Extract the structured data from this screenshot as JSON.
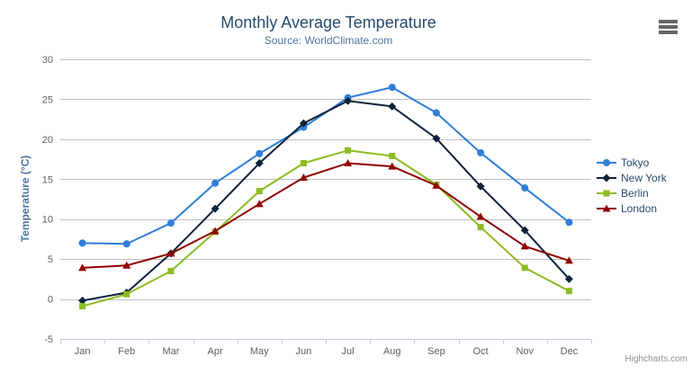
{
  "chart": {
    "title": "Monthly Average Temperature",
    "subtitle": "Source: WorldClimate.com",
    "y_axis_title": "Temperature (°C)",
    "credits": "Highcharts.com",
    "context_menu_icon": "hamburger-menu"
  },
  "chart_data": {
    "type": "line",
    "title": "Monthly Average Temperature",
    "subtitle": "Source: WorldClimate.com",
    "categories": [
      "Jan",
      "Feb",
      "Mar",
      "Apr",
      "May",
      "Jun",
      "Jul",
      "Aug",
      "Sep",
      "Oct",
      "Nov",
      "Dec"
    ],
    "xlabel": "",
    "ylabel": "Temperature (°C)",
    "ylim": [
      -5,
      30
    ],
    "tick_interval": 5,
    "grid": true,
    "legend_position": "right-middle",
    "series": [
      {
        "name": "Tokyo",
        "color": "#2f7ed8",
        "marker": "circle",
        "values": [
          7.0,
          6.9,
          9.5,
          14.5,
          18.2,
          21.5,
          25.2,
          26.5,
          23.3,
          18.3,
          13.9,
          9.6
        ]
      },
      {
        "name": "New York",
        "color": "#0d233a",
        "marker": "diamond",
        "values": [
          -0.2,
          0.8,
          5.7,
          11.3,
          17.0,
          22.0,
          24.8,
          24.1,
          20.1,
          14.1,
          8.6,
          2.5
        ]
      },
      {
        "name": "Berlin",
        "color": "#8bbc21",
        "marker": "square",
        "values": [
          -0.9,
          0.6,
          3.5,
          8.4,
          13.5,
          17.0,
          18.6,
          17.9,
          14.3,
          9.0,
          3.9,
          1.0
        ]
      },
      {
        "name": "London",
        "color": "#910000",
        "marker": "triangle",
        "values": [
          3.9,
          4.2,
          5.7,
          8.5,
          11.9,
          15.2,
          17.0,
          16.6,
          14.2,
          10.3,
          6.6,
          4.8
        ]
      }
    ]
  },
  "theme": {
    "grid_color": "#c0c0c0",
    "axis_line_color": "#c0d0e0",
    "label_color": "#606060",
    "title_color": "#274b6d",
    "subtitle_color": "#4d759e"
  }
}
